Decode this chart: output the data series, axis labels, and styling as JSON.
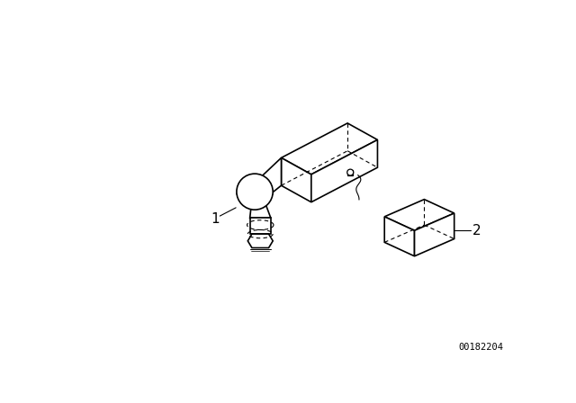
{
  "background_color": "#ffffff",
  "line_color": "#000000",
  "label_1": "1",
  "label_2": "2",
  "part_number": "00182204",
  "figsize": [
    6.4,
    4.48
  ],
  "dpi": 100
}
